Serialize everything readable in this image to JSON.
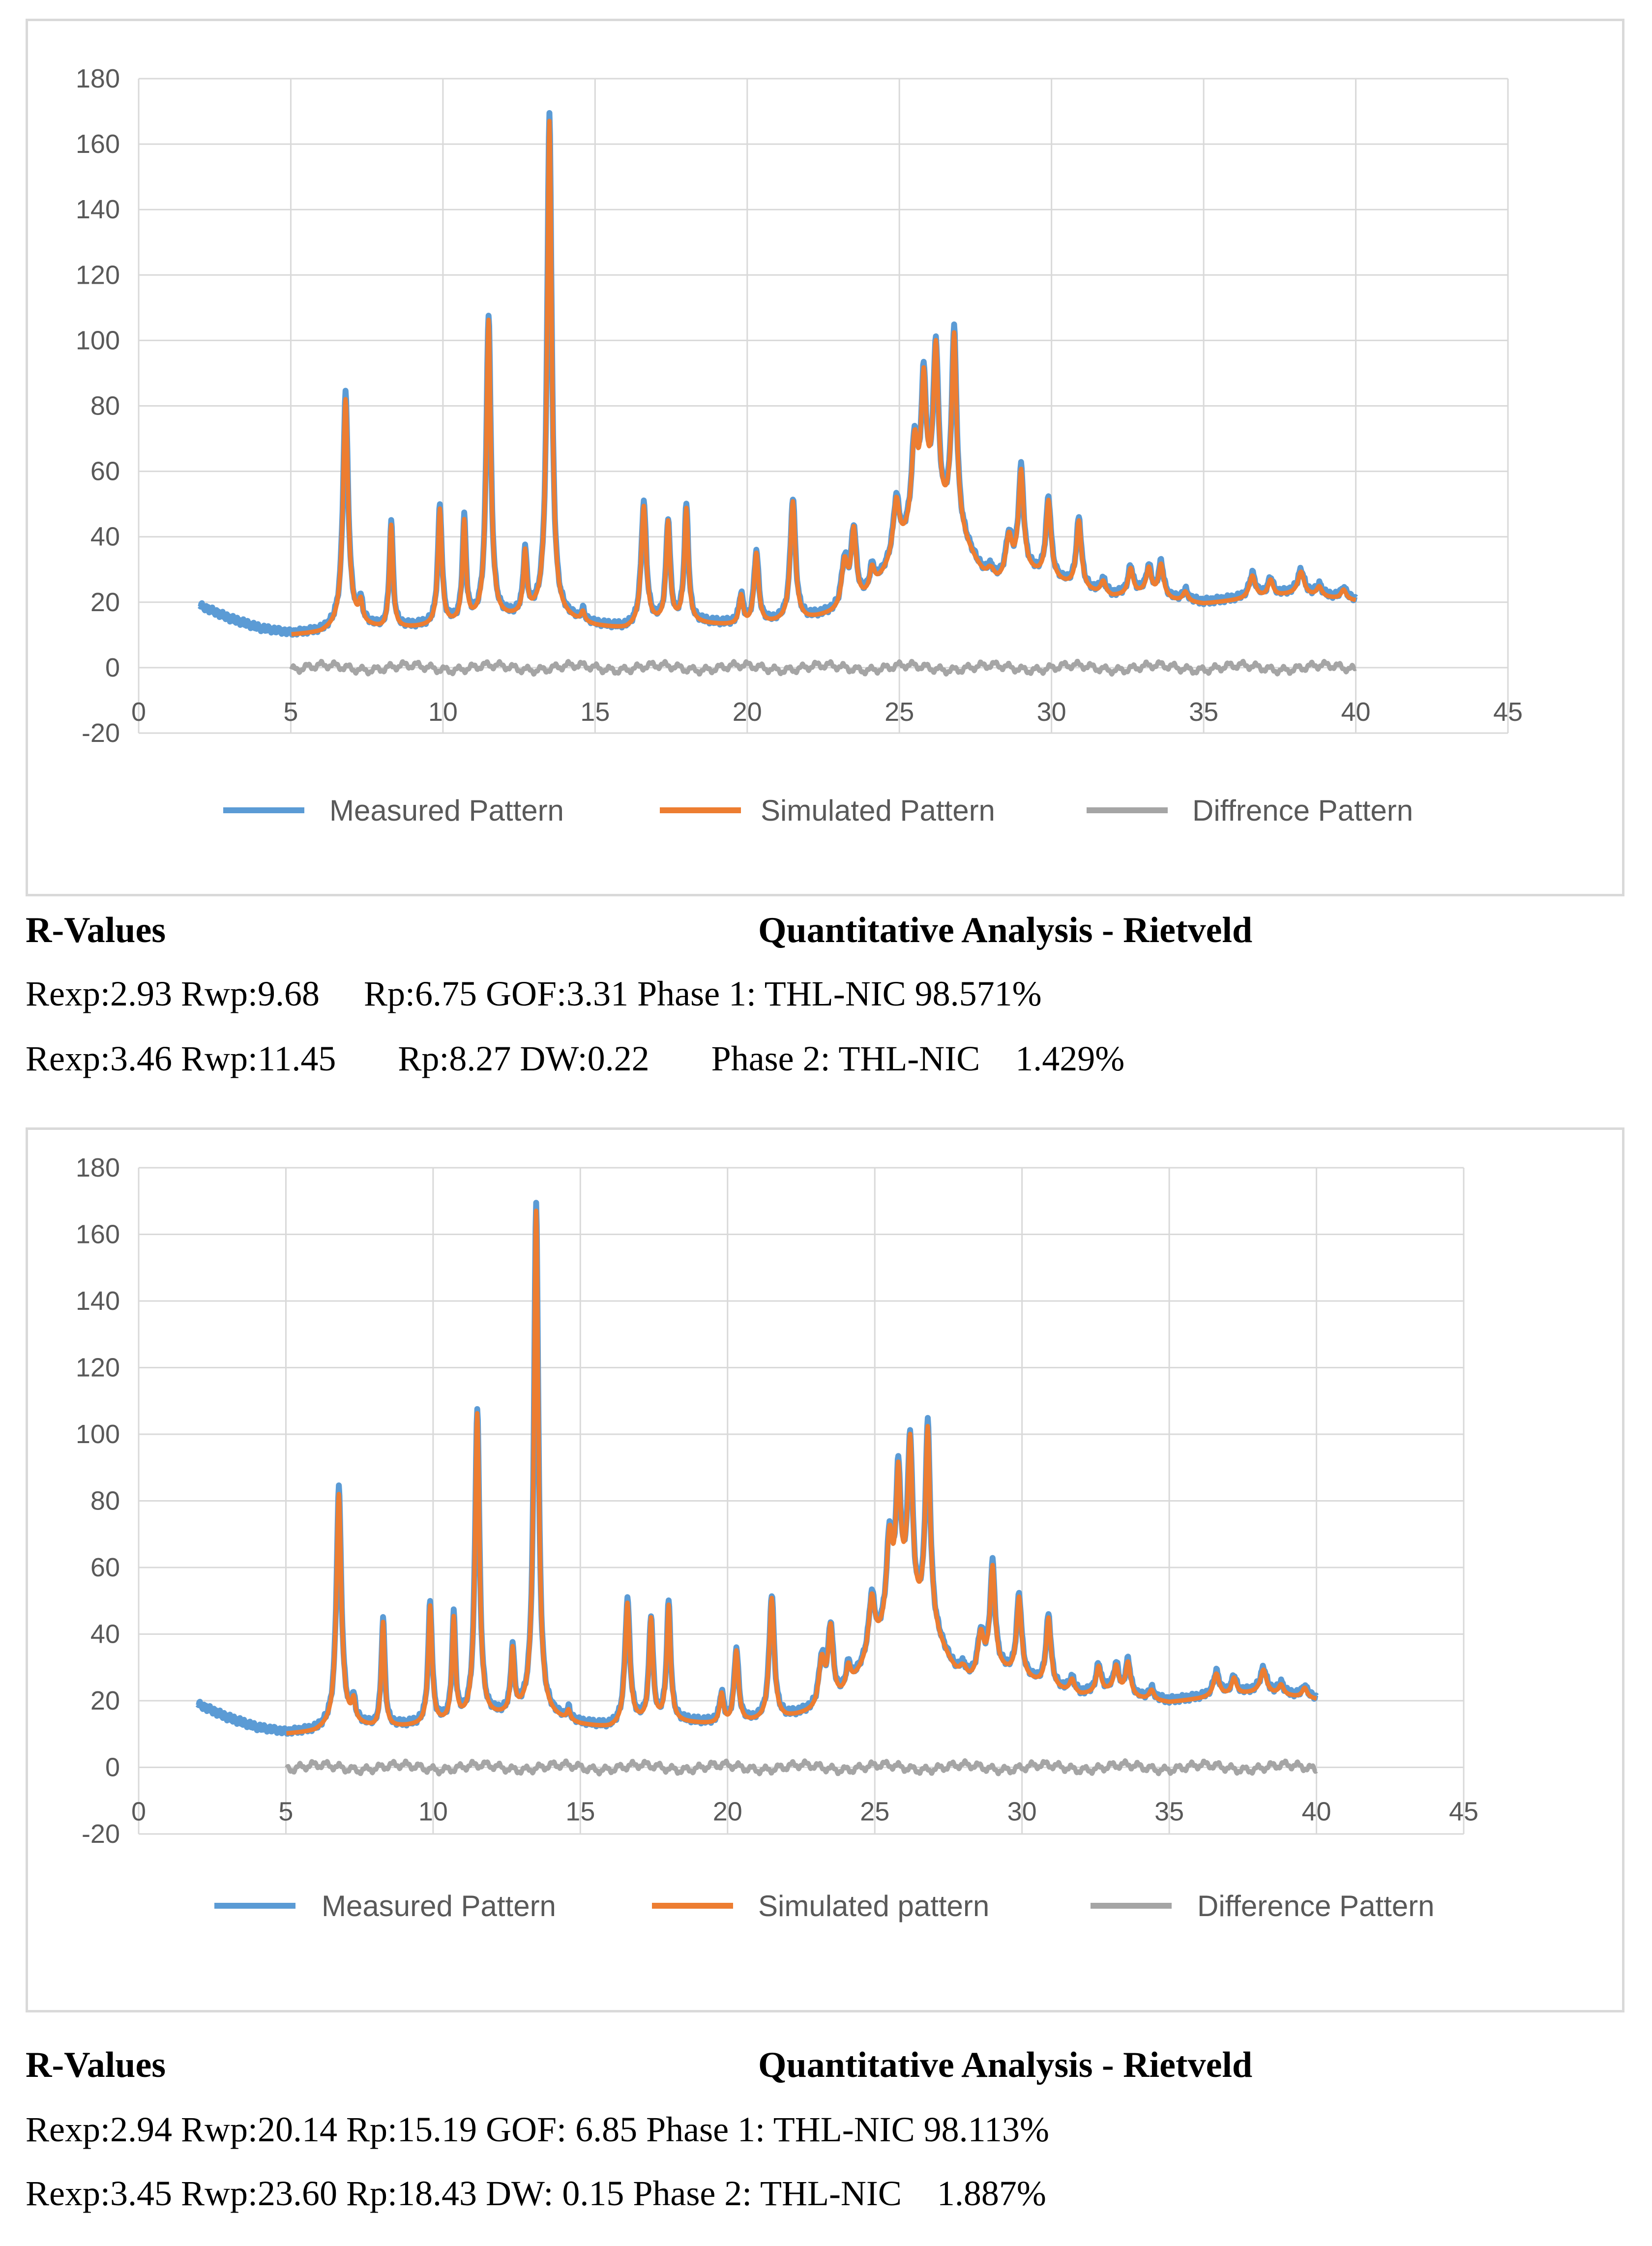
{
  "colors": {
    "measured": "#5b9bd5",
    "simulated": "#ed7d31",
    "difference": "#a5a5a5",
    "grid": "#d9d9d9",
    "tick_text": "#595959"
  },
  "panels": [
    {
      "chart_data": {
        "type": "line",
        "title": "",
        "xlabel": "",
        "ylabel": "",
        "xlim": [
          0,
          45
        ],
        "ylim": [
          -20,
          180
        ],
        "x_ticks": [
          0,
          5,
          10,
          15,
          20,
          25,
          30,
          35,
          40,
          45
        ],
        "y_ticks": [
          -20,
          0,
          20,
          40,
          60,
          80,
          100,
          120,
          140,
          160,
          180
        ],
        "grid": true,
        "legend_position": "bottom",
        "background": {
          "x": [
            2.0,
            3.0,
            4.0,
            5.0,
            6.0,
            7.0,
            8.0,
            9.0,
            10.0,
            11.0,
            12.0,
            13.0,
            14.0,
            15.0,
            16.0,
            17.0,
            18.0,
            19.0,
            20.0,
            21.0,
            22.0,
            23.0,
            24.0,
            25.0,
            26.0,
            27.0,
            28.0,
            29.0,
            30.0,
            31.0,
            32.0,
            33.0,
            34.0,
            35.0,
            36.0,
            37.0,
            38.0,
            39.0,
            40.0
          ],
          "y": [
            19,
            15,
            12,
            10.5,
            11,
            14,
            12,
            12.5,
            13,
            14,
            15,
            16,
            15,
            13,
            12,
            13.5,
            14,
            13.5,
            13,
            14,
            15,
            17,
            22,
            35,
            48,
            40,
            24,
            30,
            27,
            24,
            22,
            23,
            21,
            20,
            21,
            22,
            23,
            22,
            21
          ]
        },
        "peaks": [
          {
            "x": 6.8,
            "height": 70,
            "width": 0.1
          },
          {
            "x": 7.3,
            "height": 6,
            "width": 0.07
          },
          {
            "x": 8.3,
            "height": 32,
            "width": 0.07
          },
          {
            "x": 9.9,
            "height": 36,
            "width": 0.08
          },
          {
            "x": 10.7,
            "height": 31,
            "width": 0.07
          },
          {
            "x": 11.5,
            "height": 93,
            "width": 0.09
          },
          {
            "x": 12.7,
            "height": 19,
            "width": 0.07
          },
          {
            "x": 13.5,
            "height": 154,
            "width": 0.09
          },
          {
            "x": 14.6,
            "height": 3,
            "width": 0.07
          },
          {
            "x": 16.6,
            "height": 37,
            "width": 0.1
          },
          {
            "x": 17.4,
            "height": 31,
            "width": 0.08
          },
          {
            "x": 18.0,
            "height": 35,
            "width": 0.08
          },
          {
            "x": 19.8,
            "height": 9,
            "width": 0.08
          },
          {
            "x": 20.3,
            "height": 22,
            "width": 0.09
          },
          {
            "x": 21.5,
            "height": 37,
            "width": 0.1
          },
          {
            "x": 23.2,
            "height": 14,
            "width": 0.12
          },
          {
            "x": 23.5,
            "height": 22,
            "width": 0.1
          },
          {
            "x": 24.1,
            "height": 7,
            "width": 0.1
          },
          {
            "x": 24.9,
            "height": 17,
            "width": 0.12
          },
          {
            "x": 25.5,
            "height": 26,
            "width": 0.12
          },
          {
            "x": 25.8,
            "height": 40,
            "width": 0.1
          },
          {
            "x": 26.2,
            "height": 50,
            "width": 0.1
          },
          {
            "x": 26.8,
            "height": 60,
            "width": 0.1
          },
          {
            "x": 28.0,
            "height": 6,
            "width": 0.15
          },
          {
            "x": 28.6,
            "height": 12,
            "width": 0.12
          },
          {
            "x": 29.0,
            "height": 30,
            "width": 0.1
          },
          {
            "x": 29.9,
            "height": 24,
            "width": 0.1
          },
          {
            "x": 30.9,
            "height": 21,
            "width": 0.1
          },
          {
            "x": 31.7,
            "height": 4,
            "width": 0.1
          },
          {
            "x": 32.6,
            "height": 8,
            "width": 0.1
          },
          {
            "x": 33.2,
            "height": 8,
            "width": 0.1
          },
          {
            "x": 33.6,
            "height": 10,
            "width": 0.1
          },
          {
            "x": 34.4,
            "height": 3,
            "width": 0.1
          },
          {
            "x": 36.6,
            "height": 7,
            "width": 0.12
          },
          {
            "x": 37.2,
            "height": 5,
            "width": 0.1
          },
          {
            "x": 38.2,
            "height": 7,
            "width": 0.12
          },
          {
            "x": 38.8,
            "height": 3,
            "width": 0.1
          },
          {
            "x": 39.6,
            "height": 3,
            "width": 0.1
          }
        ],
        "series": [
          {
            "name": "Measured Pattern",
            "x_range": [
              2,
              40
            ],
            "relation": "background + peaks (slightly higher peak tops)",
            "max": 169
          },
          {
            "name": "Simulated Pattern",
            "x_range": [
              5,
              40
            ],
            "relation": "background + peaks",
            "max": 167
          },
          {
            "name": "Diffrence Pattern",
            "x_range": [
              5,
              40
            ],
            "relation": "measured - simulated, fluctuating around 0",
            "range": [
              -2,
              2
            ]
          }
        ]
      },
      "legend": [
        "Measured Pattern",
        "Simulated Pattern",
        "Diffrence Pattern"
      ],
      "caption": {
        "r_values_head": "R-Values",
        "qa_head": "Quantitative Analysis - Rietveld",
        "line1": "Rexp:2.93 Rwp:9.68     Rp:6.75 GOF:3.31 Phase 1: THL-NIC 98.571%",
        "line2": "Rexp:3.46 Rwp:11.45       Rp:8.27 DW:0.22       Phase 2: THL-NIC    1.429%"
      }
    },
    {
      "chart_data": {
        "type": "line",
        "title": "",
        "xlabel": "",
        "ylabel": "",
        "xlim": [
          0,
          45
        ],
        "ylim": [
          -20,
          180
        ],
        "x_ticks": [
          0,
          5,
          10,
          15,
          20,
          25,
          30,
          35,
          40,
          45
        ],
        "y_ticks": [
          -20,
          0,
          20,
          40,
          60,
          80,
          100,
          120,
          140,
          160,
          180
        ],
        "grid": true,
        "legend_position": "bottom",
        "background": {
          "x": [
            2.0,
            3.0,
            4.0,
            5.0,
            6.0,
            7.0,
            8.0,
            9.0,
            10.0,
            11.0,
            12.0,
            13.0,
            14.0,
            15.0,
            16.0,
            17.0,
            18.0,
            19.0,
            20.0,
            21.0,
            22.0,
            23.0,
            24.0,
            25.0,
            26.0,
            27.0,
            28.0,
            29.0,
            30.0,
            31.0,
            32.0,
            33.0,
            34.0,
            35.0,
            36.0,
            37.0,
            38.0,
            39.0,
            40.0
          ],
          "y": [
            19,
            15,
            12,
            10.5,
            11,
            14,
            12,
            12.5,
            13,
            14,
            15,
            16,
            15,
            13,
            12,
            13.5,
            14,
            13.5,
            13,
            14,
            15,
            17,
            22,
            35,
            48,
            40,
            24,
            30,
            27,
            24,
            22,
            23,
            21,
            20,
            21,
            22,
            23,
            22,
            21
          ]
        },
        "peaks": [
          {
            "x": 6.8,
            "height": 70,
            "width": 0.1
          },
          {
            "x": 7.3,
            "height": 6,
            "width": 0.07
          },
          {
            "x": 8.3,
            "height": 32,
            "width": 0.07
          },
          {
            "x": 9.9,
            "height": 36,
            "width": 0.08
          },
          {
            "x": 10.7,
            "height": 31,
            "width": 0.07
          },
          {
            "x": 11.5,
            "height": 93,
            "width": 0.09
          },
          {
            "x": 12.7,
            "height": 19,
            "width": 0.07
          },
          {
            "x": 13.5,
            "height": 154,
            "width": 0.09
          },
          {
            "x": 14.6,
            "height": 3,
            "width": 0.07
          },
          {
            "x": 16.6,
            "height": 37,
            "width": 0.1
          },
          {
            "x": 17.4,
            "height": 31,
            "width": 0.08
          },
          {
            "x": 18.0,
            "height": 35,
            "width": 0.08
          },
          {
            "x": 19.8,
            "height": 9,
            "width": 0.08
          },
          {
            "x": 20.3,
            "height": 22,
            "width": 0.09
          },
          {
            "x": 21.5,
            "height": 37,
            "width": 0.1
          },
          {
            "x": 23.2,
            "height": 14,
            "width": 0.12
          },
          {
            "x": 23.5,
            "height": 22,
            "width": 0.1
          },
          {
            "x": 24.1,
            "height": 7,
            "width": 0.1
          },
          {
            "x": 24.9,
            "height": 17,
            "width": 0.12
          },
          {
            "x": 25.5,
            "height": 26,
            "width": 0.12
          },
          {
            "x": 25.8,
            "height": 40,
            "width": 0.1
          },
          {
            "x": 26.2,
            "height": 50,
            "width": 0.1
          },
          {
            "x": 26.8,
            "height": 60,
            "width": 0.1
          },
          {
            "x": 28.0,
            "height": 6,
            "width": 0.15
          },
          {
            "x": 28.6,
            "height": 12,
            "width": 0.12
          },
          {
            "x": 29.0,
            "height": 30,
            "width": 0.1
          },
          {
            "x": 29.9,
            "height": 24,
            "width": 0.1
          },
          {
            "x": 30.9,
            "height": 21,
            "width": 0.1
          },
          {
            "x": 31.7,
            "height": 4,
            "width": 0.1
          },
          {
            "x": 32.6,
            "height": 8,
            "width": 0.1
          },
          {
            "x": 33.2,
            "height": 8,
            "width": 0.1
          },
          {
            "x": 33.6,
            "height": 10,
            "width": 0.1
          },
          {
            "x": 34.4,
            "height": 3,
            "width": 0.1
          },
          {
            "x": 36.6,
            "height": 7,
            "width": 0.12
          },
          {
            "x": 37.2,
            "height": 5,
            "width": 0.1
          },
          {
            "x": 38.2,
            "height": 7,
            "width": 0.12
          },
          {
            "x": 38.8,
            "height": 3,
            "width": 0.1
          },
          {
            "x": 39.6,
            "height": 3,
            "width": 0.1
          }
        ],
        "series": [
          {
            "name": "Measured Pattern",
            "x_range": [
              2,
              40
            ],
            "relation": "background + peaks (slightly higher peak tops)",
            "max": 169
          },
          {
            "name": "Simulated pattern",
            "x_range": [
              5,
              40
            ],
            "relation": "background + peaks",
            "max": 167
          },
          {
            "name": "Difference Pattern",
            "x_range": [
              5,
              40
            ],
            "relation": "measured - simulated, fluctuating around 0",
            "range": [
              -2,
              2
            ]
          }
        ]
      },
      "legend": [
        "Measured Pattern",
        "Simulated pattern",
        "Difference Pattern"
      ],
      "caption": {
        "r_values_head": "R-Values",
        "qa_head": "Quantitative Analysis - Rietveld",
        "line1": "Rexp:2.94 Rwp:20.14 Rp:15.19 GOF: 6.85 Phase 1: THL-NIC 98.113%",
        "line2": "Rexp:3.45 Rwp:23.60 Rp:18.43 DW: 0.15 Phase 2: THL-NIC    1.887%"
      }
    }
  ]
}
